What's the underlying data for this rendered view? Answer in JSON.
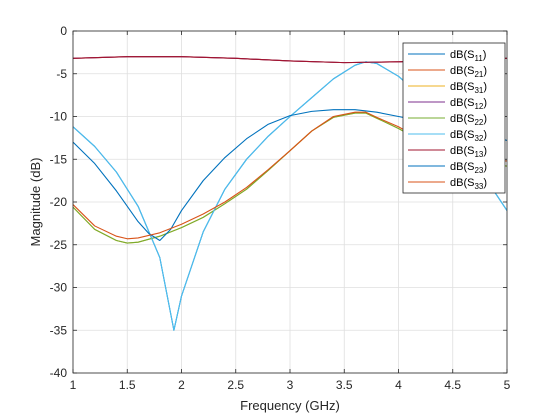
{
  "chart_data": {
    "type": "line",
    "xlabel": "Frequency (GHz)",
    "ylabel": "Magnitude (dB)",
    "xlim": [
      1,
      5
    ],
    "ylim": [
      -40,
      0
    ],
    "xticks": [
      1,
      1.5,
      2,
      2.5,
      3,
      3.5,
      4,
      4.5,
      5
    ],
    "xtick_labels": [
      "1",
      "1.5",
      "2",
      "2.5",
      "3",
      "3.5",
      "4",
      "4.5",
      "5"
    ],
    "yticks": [
      0,
      -5,
      -10,
      -15,
      -20,
      -25,
      -30,
      -35,
      -40
    ],
    "ytick_labels": [
      "0",
      "-5",
      "-10",
      "-15",
      "-20",
      "-25",
      "-30",
      "-35",
      "-40"
    ],
    "grid": true,
    "legend_position": "top-right",
    "series": [
      {
        "name": "dB(S11)",
        "label_base": "dB(S",
        "label_sub": "11",
        "label_end": ")",
        "color": "#0072BD",
        "x": [
          1.0,
          1.2,
          1.4,
          1.6,
          1.8,
          1.93,
          2.0,
          2.2,
          2.4,
          2.6,
          2.8,
          3.0,
          3.2,
          3.4,
          3.6,
          3.7,
          3.8,
          4.0,
          4.2,
          4.4,
          4.6,
          4.8,
          5.0
        ],
        "y": [
          -11.2,
          -13.5,
          -16.5,
          -20.5,
          -26.5,
          -35.0,
          -31.0,
          -23.5,
          -18.5,
          -15.0,
          -12.3,
          -10.0,
          -7.8,
          -5.6,
          -4.0,
          -3.6,
          -3.8,
          -5.3,
          -7.5,
          -10.4,
          -13.7,
          -17.2,
          -21.0
        ]
      },
      {
        "name": "dB(S21)",
        "label_base": "dB(S",
        "label_sub": "21",
        "label_end": ")",
        "color": "#D95319",
        "x": [
          1.0,
          1.5,
          2.0,
          2.5,
          3.0,
          3.5,
          4.0,
          4.5,
          5.0
        ],
        "y": [
          -3.2,
          -3.0,
          -3.0,
          -3.2,
          -3.5,
          -3.7,
          -3.6,
          -3.4,
          -3.2
        ]
      },
      {
        "name": "dB(S31)",
        "label_base": "dB(S",
        "label_sub": "31",
        "label_end": ")",
        "color": "#EDB120",
        "x": [
          1.0,
          1.2,
          1.4,
          1.5,
          1.6,
          1.8,
          2.0,
          2.2,
          2.4,
          2.6,
          2.8,
          3.0,
          3.2,
          3.4,
          3.6,
          3.7,
          3.8,
          4.0,
          4.2,
          4.4,
          4.6,
          4.8,
          5.0
        ],
        "y": [
          -20.6,
          -23.2,
          -24.5,
          -24.8,
          -24.7,
          -24.0,
          -23.0,
          -21.8,
          -20.2,
          -18.5,
          -16.3,
          -14.0,
          -11.7,
          -10.1,
          -9.6,
          -9.6,
          -10.2,
          -11.4,
          -12.8,
          -14.0,
          -15.0,
          -15.6,
          -15.8
        ]
      },
      {
        "name": "dB(S12)",
        "label_base": "dB(S",
        "label_sub": "12",
        "label_end": ")",
        "color": "#7E2F8E",
        "x": [
          1.0,
          1.5,
          2.0,
          2.5,
          3.0,
          3.5,
          4.0,
          4.5,
          5.0
        ],
        "y": [
          -3.2,
          -3.0,
          -3.0,
          -3.2,
          -3.5,
          -3.7,
          -3.6,
          -3.4,
          -3.2
        ]
      },
      {
        "name": "dB(S22)",
        "label_base": "dB(S",
        "label_sub": "22",
        "label_end": ")",
        "color": "#77AC30",
        "x": [
          1.0,
          1.2,
          1.4,
          1.5,
          1.6,
          1.8,
          2.0,
          2.2,
          2.4,
          2.6,
          2.8,
          3.0,
          3.2,
          3.4,
          3.6,
          3.7,
          3.8,
          4.0,
          4.2,
          4.4,
          4.6,
          4.8,
          5.0
        ],
        "y": [
          -20.6,
          -23.2,
          -24.5,
          -24.8,
          -24.7,
          -24.0,
          -23.0,
          -21.8,
          -20.2,
          -18.5,
          -16.3,
          -14.0,
          -11.7,
          -10.1,
          -9.6,
          -9.6,
          -10.2,
          -11.4,
          -12.8,
          -14.0,
          -15.0,
          -15.6,
          -15.8
        ]
      },
      {
        "name": "dB(S32)",
        "label_base": "dB(S",
        "label_sub": "32",
        "label_end": ")",
        "color": "#4DBEEE",
        "x": [
          1.0,
          1.2,
          1.4,
          1.6,
          1.8,
          1.93,
          2.0,
          2.2,
          2.4,
          2.6,
          2.8,
          3.0,
          3.2,
          3.4,
          3.6,
          3.7,
          3.8,
          4.0,
          4.2,
          4.4,
          4.6,
          4.8,
          5.0
        ],
        "y": [
          -11.2,
          -13.5,
          -16.5,
          -20.5,
          -26.5,
          -35.0,
          -31.0,
          -23.5,
          -18.5,
          -15.0,
          -12.3,
          -10.0,
          -7.8,
          -5.6,
          -4.0,
          -3.6,
          -3.8,
          -5.3,
          -7.5,
          -10.4,
          -13.7,
          -17.2,
          -21.0
        ]
      },
      {
        "name": "dB(S13)",
        "label_base": "dB(S",
        "label_sub": "13",
        "label_end": ")",
        "color": "#A2142F",
        "x": [
          1.0,
          1.5,
          2.0,
          2.5,
          3.0,
          3.5,
          4.0,
          4.5,
          5.0
        ],
        "y": [
          -3.2,
          -3.0,
          -3.0,
          -3.2,
          -3.5,
          -3.7,
          -3.6,
          -3.4,
          -3.2
        ]
      },
      {
        "name": "dB(S23)",
        "label_base": "dB(S",
        "label_sub": "23",
        "label_end": ")",
        "color": "#0072BD",
        "x": [
          1.0,
          1.2,
          1.4,
          1.6,
          1.7,
          1.8,
          1.9,
          2.0,
          2.2,
          2.4,
          2.6,
          2.8,
          3.0,
          3.2,
          3.4,
          3.6,
          3.8,
          4.0,
          4.2,
          4.4,
          4.6,
          4.8,
          5.0
        ],
        "y": [
          -13.0,
          -15.5,
          -18.7,
          -22.3,
          -23.7,
          -24.5,
          -23.2,
          -21.0,
          -17.5,
          -14.8,
          -12.6,
          -10.9,
          -9.9,
          -9.4,
          -9.2,
          -9.2,
          -9.5,
          -10.0,
          -10.5,
          -11.0,
          -11.5,
          -12.0,
          -12.8
        ]
      },
      {
        "name": "dB(S33)",
        "label_base": "dB(S",
        "label_sub": "33",
        "label_end": ")",
        "color": "#D95319",
        "x": [
          1.0,
          1.2,
          1.4,
          1.5,
          1.6,
          1.8,
          2.0,
          2.2,
          2.4,
          2.6,
          2.8,
          3.0,
          3.2,
          3.4,
          3.6,
          3.7,
          3.8,
          4.0,
          4.2,
          4.4,
          4.6,
          4.8,
          5.0
        ],
        "y": [
          -20.3,
          -22.8,
          -24.0,
          -24.3,
          -24.2,
          -23.6,
          -22.6,
          -21.4,
          -20.0,
          -18.3,
          -16.2,
          -14.0,
          -11.7,
          -10.0,
          -9.5,
          -9.5,
          -10.1,
          -11.2,
          -12.6,
          -13.8,
          -14.7,
          -15.2,
          -15.2
        ]
      }
    ]
  }
}
